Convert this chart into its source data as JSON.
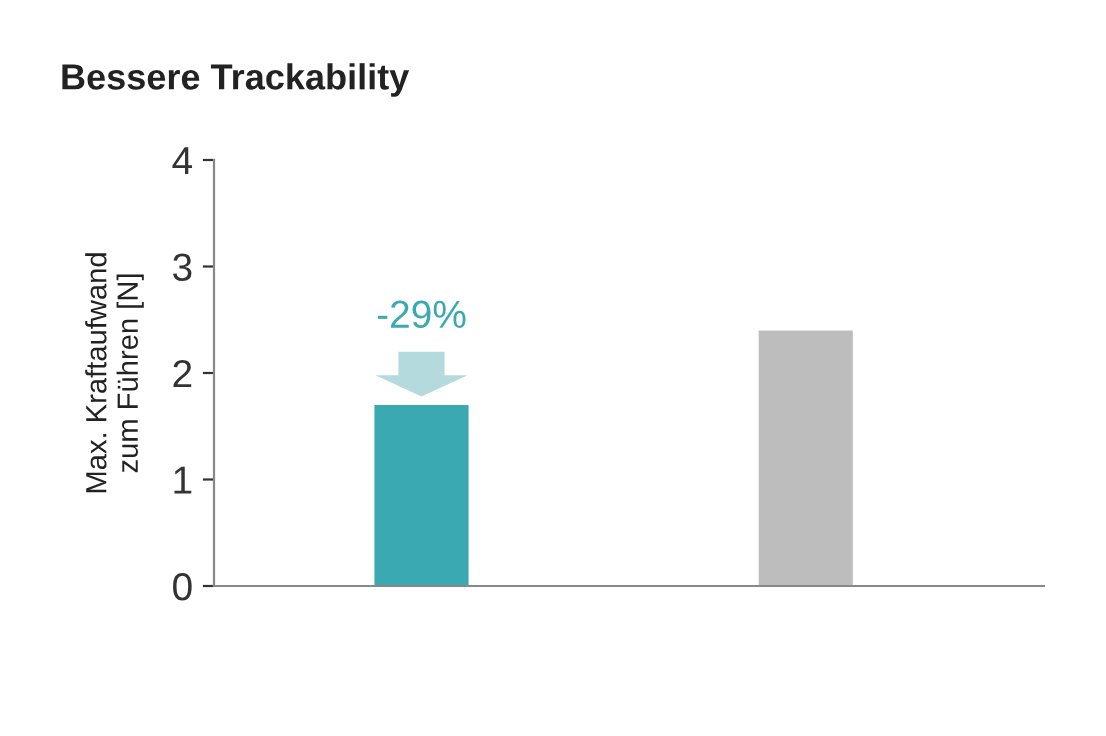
{
  "chart_data": {
    "type": "bar",
    "title": "Bessere Trackability",
    "ylabel": "Max. Kraftaufwand\nzum Führen [N]",
    "categories": [
      null,
      null
    ],
    "values": [
      1.7,
      2.4
    ],
    "colors": [
      "#3aa9b1",
      "#bdbdbd"
    ],
    "ylim": [
      0,
      4
    ],
    "yticks": [
      0,
      1,
      2,
      3,
      4
    ],
    "grid": false,
    "annotations": [
      "-29%"
    ]
  }
}
